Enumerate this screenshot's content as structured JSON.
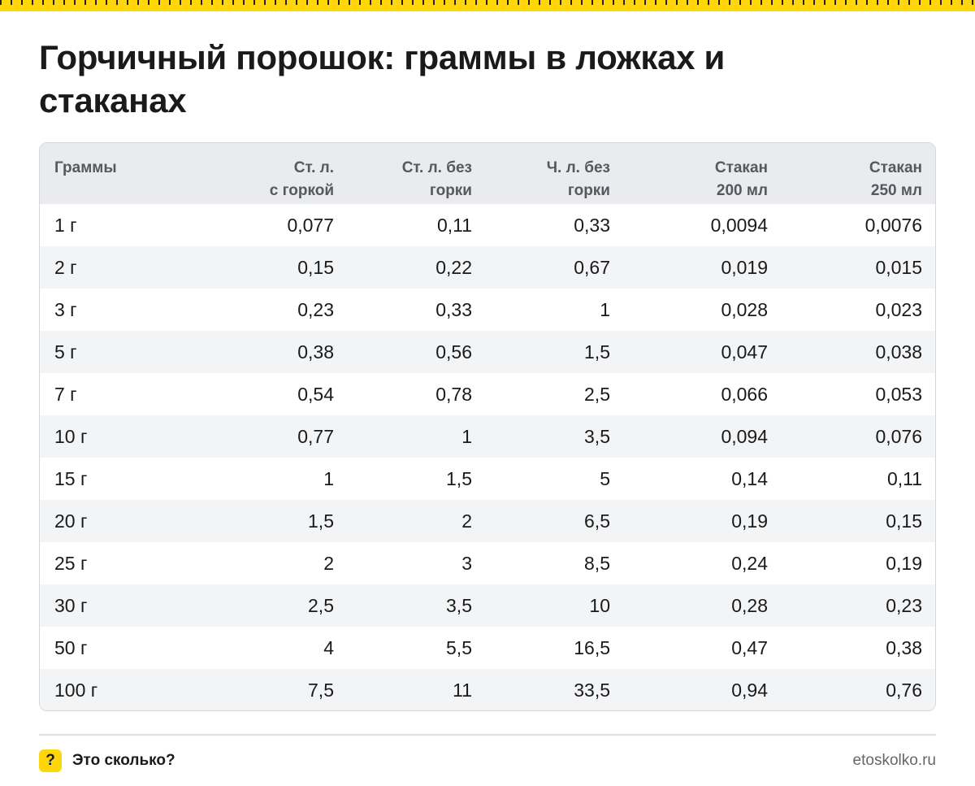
{
  "title": "Горчичный порошок: граммы в ложках и стаканах",
  "table": {
    "headers": [
      "Граммы",
      "Ст. л.\nс горкой",
      "Ст. л. без\nгорки",
      "Ч. л. без\nгорки",
      "Стакан\n200 мл",
      "Стакан\n250 мл"
    ],
    "rows": [
      [
        "1 г",
        "0,077",
        "0,11",
        "0,33",
        "0,0094",
        "0,0076"
      ],
      [
        "2 г",
        "0,15",
        "0,22",
        "0,67",
        "0,019",
        "0,015"
      ],
      [
        "3 г",
        "0,23",
        "0,33",
        "1",
        "0,028",
        "0,023"
      ],
      [
        "5 г",
        "0,38",
        "0,56",
        "1,5",
        "0,047",
        "0,038"
      ],
      [
        "7 г",
        "0,54",
        "0,78",
        "2,5",
        "0,066",
        "0,053"
      ],
      [
        "10 г",
        "0,77",
        "1",
        "3,5",
        "0,094",
        "0,076"
      ],
      [
        "15 г",
        "1",
        "1,5",
        "5",
        "0,14",
        "0,11"
      ],
      [
        "20 г",
        "1,5",
        "2",
        "6,5",
        "0,19",
        "0,15"
      ],
      [
        "25 г",
        "2",
        "3",
        "8,5",
        "0,24",
        "0,19"
      ],
      [
        "30 г",
        "2,5",
        "3,5",
        "10",
        "0,28",
        "0,23"
      ],
      [
        "50 г",
        "4",
        "5,5",
        "16,5",
        "0,47",
        "0,38"
      ],
      [
        "100 г",
        "7,5",
        "11",
        "33,5",
        "0,94",
        "0,76"
      ]
    ]
  },
  "footer": {
    "icon_glyph": "?",
    "brand_name": "Это сколько?",
    "site": "etoskolko.ru"
  },
  "colors": {
    "accent": "#ffd60a",
    "header_bg": "#e9ebee",
    "stripe_bg": "#f3f4f6",
    "text": "#1a1a1a",
    "header_text": "#55595e"
  }
}
